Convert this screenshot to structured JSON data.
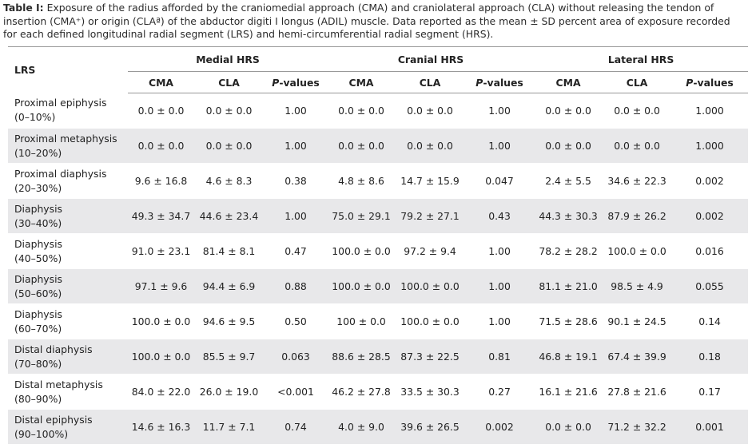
{
  "caption": {
    "label": "Table I:",
    "text": "Exposure of the radius afforded by the craniomedial approach (CMA) and craniolateral approach (CLA) without releasing the tendon of insertion (CMA⁺) or origin (CLAª) of the abductor digiti I longus (ADIL) muscle. Data reported as the mean ± SD percent area of exposure recorded for each defined longitudinal radial segment (LRS) and hemi-circumferential radial segment (HRS)."
  },
  "table": {
    "row_header": "LRS",
    "groups": [
      "Medial HRS",
      "Cranial HRS",
      "Lateral HRS"
    ],
    "columns": [
      "CMA",
      "CLA",
      "P-values",
      "CMA",
      "CLA",
      "P-values",
      "CMA",
      "CLA",
      "P-values"
    ],
    "rows": [
      {
        "segment": "Proximal epiphysis",
        "range": "(0–10%)",
        "cells": [
          "0.0 ± 0.0",
          "0.0 ± 0.0",
          "1.00",
          "0.0 ± 0.0",
          "0.0 ± 0.0",
          "1.00",
          "0.0 ± 0.0",
          "0.0 ± 0.0",
          "1.000"
        ]
      },
      {
        "segment": "Proximal metaphysis",
        "range": "(10–20%)",
        "cells": [
          "0.0 ± 0.0",
          "0.0 ± 0.0",
          "1.00",
          "0.0 ± 0.0",
          "0.0 ± 0.0",
          "1.00",
          "0.0 ± 0.0",
          "0.0 ± 0.0",
          "1.000"
        ]
      },
      {
        "segment": "Proximal diaphysis",
        "range": "(20–30%)",
        "cells": [
          "9.6 ± 16.8",
          "4.6 ± 8.3",
          "0.38",
          "4.8 ± 8.6",
          "14.7 ± 15.9",
          "0.047",
          "2.4 ± 5.5",
          "34.6 ± 22.3",
          "0.002"
        ]
      },
      {
        "segment": "Diaphysis",
        "range": "(30–40%)",
        "cells": [
          "49.3 ± 34.7",
          "44.6 ± 23.4",
          "1.00",
          "75.0 ± 29.1",
          "79.2 ± 27.1",
          "0.43",
          "44.3 ± 30.3",
          "87.9 ± 26.2",
          "0.002"
        ]
      },
      {
        "segment": "Diaphysis",
        "range": "(40–50%)",
        "cells": [
          "91.0 ± 23.1",
          "81.4 ± 8.1",
          "0.47",
          "100.0 ± 0.0",
          "97.2 ± 9.4",
          "1.00",
          "78.2 ± 28.2",
          "100.0 ± 0.0",
          "0.016"
        ]
      },
      {
        "segment": "Diaphysis",
        "range": "(50–60%)",
        "cells": [
          "97.1 ± 9.6",
          "94.4 ± 6.9",
          "0.88",
          "100.0 ± 0.0",
          "100.0 ± 0.0",
          "1.00",
          "81.1 ± 21.0",
          "98.5 ± 4.9",
          "0.055"
        ]
      },
      {
        "segment": "Diaphysis",
        "range": "(60–70%)",
        "cells": [
          "100.0 ± 0.0",
          "94.6 ± 9.5",
          "0.50",
          "100 ± 0.0",
          "100.0 ± 0.0",
          "1.00",
          "71.5 ± 28.6",
          "90.1 ± 24.5",
          "0.14"
        ]
      },
      {
        "segment": "Distal diaphysis",
        "range": "(70–80%)",
        "cells": [
          "100.0 ± 0.0",
          "85.5 ± 9.7",
          "0.063",
          "88.6 ± 28.5",
          "87.3 ± 22.5",
          "0.81",
          "46.8 ± 19.1",
          "67.4 ± 39.9",
          "0.18"
        ]
      },
      {
        "segment": "Distal metaphysis",
        "range": "(80–90%)",
        "cells": [
          "84.0 ± 22.0",
          "26.0 ± 19.0",
          "<0.001",
          "46.2 ± 27.8",
          "33.5 ± 30.3",
          "0.27",
          "16.1 ± 21.6",
          "27.8 ± 21.6",
          "0.17"
        ]
      },
      {
        "segment": "Distal epiphysis",
        "range": "(90–100%)",
        "cells": [
          "14.6 ± 16.3",
          "11.7 ± 7.1",
          "0.74",
          "4.0 ± 9.0",
          "39.6 ± 26.5",
          "0.002",
          "0.0 ± 0.0",
          "71.2 ± 32.2",
          "0.001"
        ]
      }
    ]
  }
}
